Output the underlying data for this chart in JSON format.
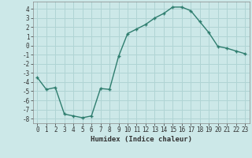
{
  "x": [
    0,
    1,
    2,
    3,
    4,
    5,
    6,
    7,
    8,
    9,
    10,
    11,
    12,
    13,
    14,
    15,
    16,
    17,
    18,
    19,
    20,
    21,
    22,
    23
  ],
  "y": [
    -3.5,
    -4.8,
    -4.6,
    -7.5,
    -7.7,
    -7.9,
    -7.7,
    -4.7,
    -4.8,
    -1.2,
    1.3,
    1.8,
    2.3,
    3.0,
    3.5,
    4.2,
    4.2,
    3.8,
    2.6,
    1.4,
    -0.1,
    -0.3,
    -0.6,
    -0.9
  ],
  "xlabel": "Humidex (Indice chaleur)",
  "ylim": [
    -8.5,
    4.8
  ],
  "xlim": [
    -0.5,
    23.5
  ],
  "line_color": "#2e7d6e",
  "bg_color": "#cce8e8",
  "grid_color": "#b0d4d4",
  "tick_color": "#333333",
  "yticks": [
    -8,
    -7,
    -6,
    -5,
    -4,
    -3,
    -2,
    -1,
    0,
    1,
    2,
    3,
    4
  ],
  "xticks": [
    0,
    1,
    2,
    3,
    4,
    5,
    6,
    7,
    8,
    9,
    10,
    11,
    12,
    13,
    14,
    15,
    16,
    17,
    18,
    19,
    20,
    21,
    22,
    23
  ]
}
